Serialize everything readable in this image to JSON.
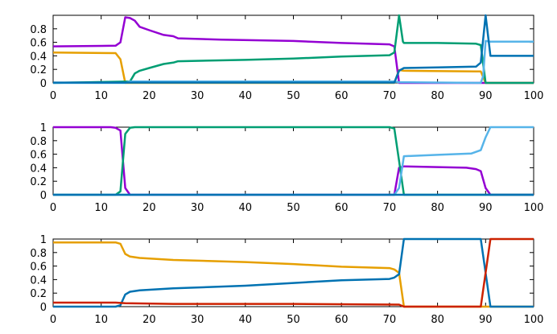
{
  "chart_data": [
    {
      "type": "line",
      "xlim": [
        0,
        100
      ],
      "ylim": [
        0,
        1.0
      ],
      "xticks": [
        0,
        10,
        20,
        30,
        40,
        50,
        60,
        70,
        80,
        90,
        100
      ],
      "yticks": [
        0,
        0.2,
        0.4,
        0.6,
        0.8
      ],
      "ytick_labels": [
        "0",
        "0.2",
        "0.4",
        "0.6",
        "0.8"
      ],
      "grid": false,
      "series": [
        {
          "color": "#9400d3",
          "points": [
            [
              0,
              0.54
            ],
            [
              13,
              0.55
            ],
            [
              14,
              0.6
            ],
            [
              15,
              0.97
            ],
            [
              16,
              0.96
            ],
            [
              17,
              0.92
            ],
            [
              18,
              0.83
            ],
            [
              20,
              0.78
            ],
            [
              23,
              0.71
            ],
            [
              25,
              0.69
            ],
            [
              26,
              0.66
            ],
            [
              35,
              0.64
            ],
            [
              50,
              0.62
            ],
            [
              60,
              0.59
            ],
            [
              70,
              0.57
            ],
            [
              71,
              0.54
            ],
            [
              72,
              0
            ],
            [
              90,
              0
            ],
            [
              100,
              0
            ]
          ]
        },
        {
          "color": "#e69f00",
          "points": [
            [
              0,
              0.45
            ],
            [
              13,
              0.44
            ],
            [
              14,
              0.35
            ],
            [
              15,
              0.0
            ],
            [
              71,
              0
            ],
            [
              72,
              0.19
            ],
            [
              73,
              0.18
            ],
            [
              88,
              0.17
            ],
            [
              89,
              0.17
            ],
            [
              90,
              0
            ],
            [
              100,
              0
            ]
          ]
        },
        {
          "color": "#009e73",
          "points": [
            [
              0,
              0
            ],
            [
              16,
              0.02
            ],
            [
              17,
              0.14
            ],
            [
              18,
              0.18
            ],
            [
              20,
              0.22
            ],
            [
              23,
              0.28
            ],
            [
              25,
              0.3
            ],
            [
              26,
              0.32
            ],
            [
              40,
              0.34
            ],
            [
              50,
              0.36
            ],
            [
              60,
              0.39
            ],
            [
              70,
              0.41
            ],
            [
              71,
              0.45
            ],
            [
              72,
              1.0
            ],
            [
              72.8,
              0.61
            ],
            [
              73,
              0.59
            ],
            [
              80,
              0.59
            ],
            [
              88,
              0.58
            ],
            [
              89,
              0.56
            ],
            [
              90,
              0.0
            ],
            [
              100,
              0
            ]
          ]
        },
        {
          "color": "#56b4e9",
          "points": [
            [
              0,
              0
            ],
            [
              15,
              0
            ],
            [
              16,
              0.02
            ],
            [
              71,
              0.02
            ],
            [
              72,
              0.01
            ],
            [
              89,
              0
            ],
            [
              89.5,
              0.1
            ],
            [
              90,
              0.62
            ],
            [
              91,
              0.61
            ],
            [
              100,
              0.61
            ]
          ]
        },
        {
          "color": "#0072b2",
          "points": [
            [
              0,
              0.005
            ],
            [
              71,
              0.005
            ],
            [
              72,
              0.18
            ],
            [
              73,
              0.22
            ],
            [
              80,
              0.23
            ],
            [
              88,
              0.24
            ],
            [
              89,
              0.3
            ],
            [
              90,
              1.0
            ],
            [
              90.5,
              0.7
            ],
            [
              91,
              0.4
            ],
            [
              100,
              0.4
            ]
          ]
        }
      ]
    },
    {
      "type": "line",
      "xlim": [
        0,
        100
      ],
      "ylim": [
        0,
        1.0
      ],
      "xticks": [
        0,
        10,
        20,
        30,
        40,
        50,
        60,
        70,
        80,
        90,
        100
      ],
      "yticks": [
        0,
        0.2,
        0.4,
        0.6,
        0.8,
        1
      ],
      "ytick_labels": [
        "0",
        "0.2",
        "0.4",
        "0.6",
        "0.8",
        "1"
      ],
      "grid": false,
      "series": [
        {
          "color": "#9400d3",
          "points": [
            [
              0,
              1.0
            ],
            [
              12,
              1.0
            ],
            [
              13,
              0.99
            ],
            [
              14,
              0.95
            ],
            [
              15,
              0.1
            ],
            [
              16,
              0
            ],
            [
              71,
              0
            ],
            [
              72,
              0.4
            ],
            [
              73,
              0.42
            ],
            [
              80,
              0.41
            ],
            [
              86,
              0.4
            ],
            [
              88,
              0.38
            ],
            [
              89,
              0.35
            ],
            [
              90,
              0.1
            ],
            [
              91,
              0
            ],
            [
              100,
              0
            ]
          ]
        },
        {
          "color": "#009e73",
          "points": [
            [
              0,
              0
            ],
            [
              13,
              0
            ],
            [
              14,
              0.05
            ],
            [
              15,
              0.9
            ],
            [
              16,
              0.99
            ],
            [
              17,
              1.0
            ],
            [
              70,
              1.0
            ],
            [
              71,
              0.98
            ],
            [
              72,
              0.5
            ],
            [
              73,
              0
            ],
            [
              100,
              0
            ]
          ]
        },
        {
          "color": "#56b4e9",
          "points": [
            [
              0,
              0
            ],
            [
              71,
              0
            ],
            [
              72,
              0.1
            ],
            [
              73,
              0.57
            ],
            [
              80,
              0.59
            ],
            [
              87,
              0.61
            ],
            [
              89,
              0.66
            ],
            [
              90,
              0.85
            ],
            [
              91,
              1.0
            ],
            [
              100,
              1.0
            ]
          ]
        },
        {
          "color": "#0072b2",
          "points": [
            [
              0,
              0
            ],
            [
              100,
              0
            ]
          ]
        }
      ]
    },
    {
      "type": "line",
      "xlim": [
        0,
        100
      ],
      "ylim": [
        0,
        1.0
      ],
      "xticks": [
        0,
        10,
        20,
        30,
        40,
        50,
        60,
        70,
        80,
        90,
        100
      ],
      "yticks": [
        0,
        0.2,
        0.4,
        0.6,
        0.8,
        1
      ],
      "ytick_labels": [
        "0",
        "0.2",
        "0.4",
        "0.6",
        "0.8",
        "1"
      ],
      "grid": false,
      "series": [
        {
          "color": "#e69f00",
          "points": [
            [
              0,
              0.95
            ],
            [
              13,
              0.95
            ],
            [
              14,
              0.93
            ],
            [
              15,
              0.78
            ],
            [
              16,
              0.74
            ],
            [
              18,
              0.72
            ],
            [
              25,
              0.69
            ],
            [
              40,
              0.66
            ],
            [
              50,
              0.63
            ],
            [
              60,
              0.59
            ],
            [
              70,
              0.57
            ],
            [
              71,
              0.55
            ],
            [
              72,
              0.5
            ],
            [
              73,
              0.0
            ],
            [
              100,
              0
            ]
          ]
        },
        {
          "color": "#0072b2",
          "points": [
            [
              0,
              0
            ],
            [
              13,
              0
            ],
            [
              14,
              0.02
            ],
            [
              15,
              0.18
            ],
            [
              16,
              0.22
            ],
            [
              18,
              0.24
            ],
            [
              25,
              0.27
            ],
            [
              40,
              0.31
            ],
            [
              50,
              0.35
            ],
            [
              60,
              0.39
            ],
            [
              70,
              0.41
            ],
            [
              71,
              0.43
            ],
            [
              72,
              0.48
            ],
            [
              73,
              1.0
            ],
            [
              89,
              1.0
            ],
            [
              90,
              0.5
            ],
            [
              91,
              0
            ],
            [
              100,
              0
            ]
          ]
        },
        {
          "color": "#cc2200",
          "points": [
            [
              0,
              0.06
            ],
            [
              13,
              0.06
            ],
            [
              15,
              0.05
            ],
            [
              25,
              0.04
            ],
            [
              50,
              0.04
            ],
            [
              72,
              0.03
            ],
            [
              73,
              0
            ],
            [
              89,
              0
            ],
            [
              90,
              0.5
            ],
            [
              91,
              1.0
            ],
            [
              100,
              1.0
            ]
          ]
        }
      ]
    }
  ]
}
